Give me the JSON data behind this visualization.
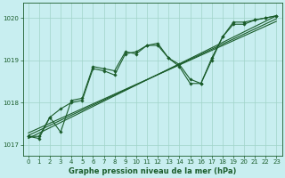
{
  "title": "Graphe pression niveau de la mer (hPa)",
  "xlim": [
    -0.5,
    23.5
  ],
  "ylim": [
    1016.75,
    1020.35
  ],
  "yticks": [
    1017,
    1018,
    1019,
    1020
  ],
  "xticks": [
    0,
    1,
    2,
    3,
    4,
    5,
    6,
    7,
    8,
    9,
    10,
    11,
    12,
    13,
    14,
    15,
    16,
    17,
    18,
    19,
    20,
    21,
    22,
    23
  ],
  "bg_color": "#c8eef0",
  "grid_color": "#a0d4c8",
  "line_color": "#1a5c2a",
  "series_main": [
    1017.2,
    1017.2,
    1017.65,
    1017.3,
    1018.05,
    1018.1,
    1018.85,
    1018.8,
    1018.75,
    1019.2,
    1019.15,
    1019.35,
    1019.4,
    1019.05,
    1018.9,
    1018.55,
    1018.45,
    1019.05,
    1019.55,
    1019.9,
    1019.9,
    1019.95,
    1020.0,
    1020.05
  ],
  "series_second": [
    1017.2,
    1017.15,
    1017.65,
    1017.85,
    1018.0,
    1018.05,
    1018.8,
    1018.75,
    1018.65,
    1019.15,
    1019.2,
    1019.35,
    1019.35,
    1019.05,
    1018.85,
    1018.45,
    1018.45,
    1019.0,
    1019.55,
    1019.85,
    1019.85,
    1019.95,
    1020.0,
    1020.05
  ],
  "trend1": [
    1017.15,
    1020.05
  ],
  "trend2": [
    1017.22,
    1019.98
  ],
  "trend3": [
    1017.28,
    1019.92
  ]
}
